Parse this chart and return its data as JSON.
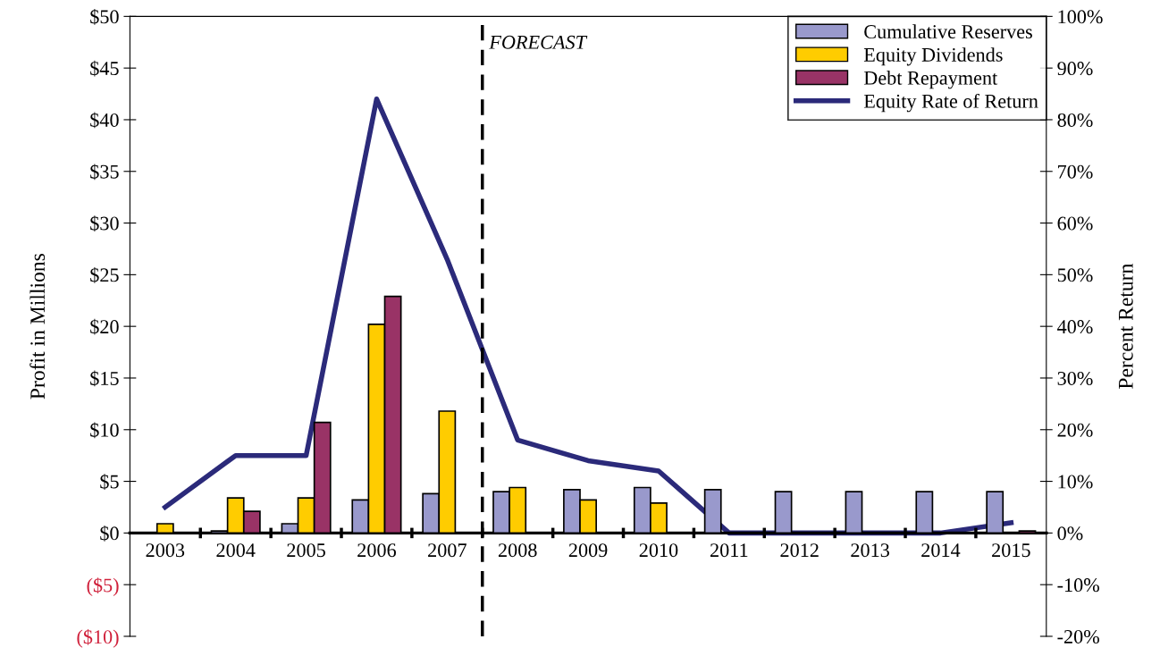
{
  "chart_data": {
    "type": "bar",
    "ylabel": "Profit in Millions",
    "y2label": "Percent Return",
    "categories": [
      "2003",
      "2004",
      "2005",
      "2006",
      "2007",
      "2008",
      "2009",
      "2010",
      "2011",
      "2012",
      "2013",
      "2014",
      "2015"
    ],
    "series": [
      {
        "name": "Cumulative Reserves",
        "color": "#9999cc",
        "values": [
          null,
          0.2,
          0.9,
          3.2,
          3.8,
          4.0,
          4.2,
          4.4,
          4.2,
          4.0,
          4.0,
          4.0,
          4.0
        ]
      },
      {
        "name": "Equity Dividends",
        "color": "#ffcc00",
        "values": [
          0.9,
          3.4,
          3.4,
          20.2,
          11.8,
          4.4,
          3.2,
          2.9,
          null,
          null,
          null,
          null,
          null
        ]
      },
      {
        "name": "Debt Repayment",
        "color": "#993366",
        "values": [
          null,
          2.1,
          10.7,
          22.9,
          null,
          null,
          null,
          null,
          null,
          null,
          null,
          null,
          0.2
        ]
      },
      {
        "name": "Equity Rate of Return",
        "type": "line",
        "axis": "y2",
        "color": "#2b2a7a",
        "values": [
          5,
          15,
          15,
          84,
          53,
          18,
          14,
          12,
          0,
          0,
          0,
          0,
          2
        ]
      }
    ],
    "ylim": [
      -10,
      50
    ],
    "yticks": [
      {
        "value": -10,
        "label": "($10)"
      },
      {
        "value": -5,
        "label": "($5)"
      },
      {
        "value": 0,
        "label": "$0"
      },
      {
        "value": 5,
        "label": "$5"
      },
      {
        "value": 10,
        "label": "$10"
      },
      {
        "value": 15,
        "label": "$15"
      },
      {
        "value": 20,
        "label": "$20"
      },
      {
        "value": 25,
        "label": "$25"
      },
      {
        "value": 30,
        "label": "$30"
      },
      {
        "value": 35,
        "label": "$35"
      },
      {
        "value": 40,
        "label": "$40"
      },
      {
        "value": 45,
        "label": "$45"
      },
      {
        "value": 50,
        "label": "$50"
      }
    ],
    "y2lim": [
      -20,
      100
    ],
    "y2ticks": [
      {
        "value": -20,
        "label": "-20%"
      },
      {
        "value": -10,
        "label": "-10%"
      },
      {
        "value": 0,
        "label": "0%"
      },
      {
        "value": 10,
        "label": "10%"
      },
      {
        "value": 20,
        "label": "20%"
      },
      {
        "value": 30,
        "label": "30%"
      },
      {
        "value": 40,
        "label": "40%"
      },
      {
        "value": 50,
        "label": "50%"
      },
      {
        "value": 60,
        "label": "60%"
      },
      {
        "value": 70,
        "label": "70%"
      },
      {
        "value": 80,
        "label": "80%"
      },
      {
        "value": 90,
        "label": "90%"
      },
      {
        "value": 100,
        "label": "100%"
      }
    ],
    "annotations": [
      "FORECAST"
    ],
    "legend": "top right",
    "grid": false
  }
}
